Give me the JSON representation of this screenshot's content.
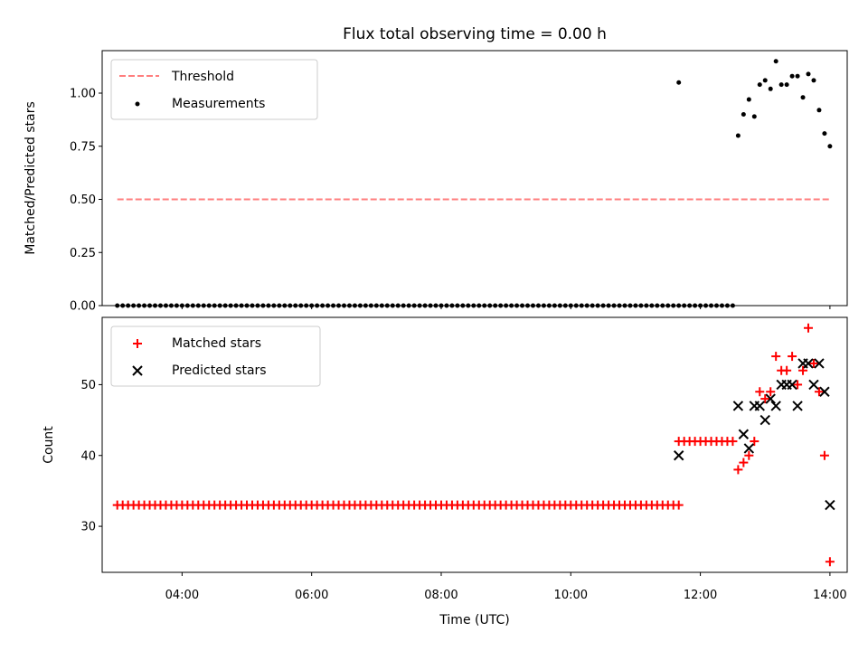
{
  "chart_data": [
    {
      "type": "scatter",
      "title": "Flux total observing time = 0.00 h",
      "ylabel": "Matched/Predicted stars",
      "xlabel": "",
      "xlim": [
        "02:46",
        "14:16"
      ],
      "ylim": [
        0.0,
        1.2
      ],
      "yticks": [
        0.0,
        0.25,
        0.5,
        0.75,
        1.0
      ],
      "ytick_labels": [
        "0.00",
        "0.25",
        "0.50",
        "0.75",
        "1.00"
      ],
      "legend": [
        "Threshold",
        "Measurements"
      ],
      "legend_position": "upper-left",
      "threshold": {
        "name": "Threshold",
        "value": 0.5,
        "x_start": "03:00",
        "x_end": "14:00",
        "color": "#ff7f7f",
        "style": "dashed"
      },
      "measurements": {
        "name": "Measurements",
        "color": "#000000",
        "zero_range": {
          "start": "03:00",
          "end": "12:30",
          "step_minutes": 5,
          "value": 0.0
        },
        "points": [
          {
            "x": "11:40",
            "y": 1.05
          },
          {
            "x": "12:35",
            "y": 0.8
          },
          {
            "x": "12:40",
            "y": 0.9
          },
          {
            "x": "12:45",
            "y": 0.97
          },
          {
            "x": "12:50",
            "y": 0.89
          },
          {
            "x": "12:55",
            "y": 1.04
          },
          {
            "x": "13:00",
            "y": 1.06
          },
          {
            "x": "13:05",
            "y": 1.02
          },
          {
            "x": "13:10",
            "y": 1.15
          },
          {
            "x": "13:15",
            "y": 1.04
          },
          {
            "x": "13:20",
            "y": 1.04
          },
          {
            "x": "13:25",
            "y": 1.08
          },
          {
            "x": "13:30",
            "y": 1.08
          },
          {
            "x": "13:35",
            "y": 0.98
          },
          {
            "x": "13:40",
            "y": 1.09
          },
          {
            "x": "13:45",
            "y": 1.06
          },
          {
            "x": "13:50",
            "y": 0.92
          },
          {
            "x": "13:55",
            "y": 0.81
          },
          {
            "x": "14:00",
            "y": 0.75
          }
        ]
      }
    },
    {
      "type": "scatter",
      "title": "",
      "xlabel": "Time (UTC)",
      "ylabel": "Count",
      "xlim": [
        "02:46",
        "14:16"
      ],
      "ylim": [
        23.5,
        59.5
      ],
      "yticks": [
        30,
        40,
        50
      ],
      "xticks": [
        "04:00",
        "06:00",
        "08:00",
        "10:00",
        "12:00",
        "14:00"
      ],
      "legend": [
        "Matched stars",
        "Predicted stars"
      ],
      "legend_position": "upper-left",
      "matched": {
        "name": "Matched stars",
        "color": "#ff0000",
        "marker": "plus",
        "flat_ranges": [
          {
            "start": "03:00",
            "end": "11:40",
            "step_minutes": 5,
            "value": 33
          },
          {
            "start": "11:40",
            "end": "12:30",
            "step_minutes": 5,
            "value": 42
          }
        ],
        "points": [
          {
            "x": "12:35",
            "y": 38
          },
          {
            "x": "12:40",
            "y": 39
          },
          {
            "x": "12:45",
            "y": 40
          },
          {
            "x": "12:50",
            "y": 42
          },
          {
            "x": "12:55",
            "y": 49
          },
          {
            "x": "13:00",
            "y": 48
          },
          {
            "x": "13:05",
            "y": 49
          },
          {
            "x": "13:10",
            "y": 54
          },
          {
            "x": "13:15",
            "y": 52
          },
          {
            "x": "13:20",
            "y": 52
          },
          {
            "x": "13:25",
            "y": 54
          },
          {
            "x": "13:30",
            "y": 50
          },
          {
            "x": "13:35",
            "y": 52
          },
          {
            "x": "13:40",
            "y": 58
          },
          {
            "x": "13:45",
            "y": 53
          },
          {
            "x": "13:50",
            "y": 49
          },
          {
            "x": "13:55",
            "y": 40
          },
          {
            "x": "14:00",
            "y": 25
          }
        ]
      },
      "predicted": {
        "name": "Predicted stars",
        "color": "#000000",
        "marker": "x",
        "points": [
          {
            "x": "11:40",
            "y": 40
          },
          {
            "x": "12:35",
            "y": 47
          },
          {
            "x": "12:40",
            "y": 43
          },
          {
            "x": "12:45",
            "y": 41
          },
          {
            "x": "12:50",
            "y": 47
          },
          {
            "x": "12:55",
            "y": 47
          },
          {
            "x": "13:00",
            "y": 45
          },
          {
            "x": "13:05",
            "y": 48
          },
          {
            "x": "13:10",
            "y": 47
          },
          {
            "x": "13:15",
            "y": 50
          },
          {
            "x": "13:20",
            "y": 50
          },
          {
            "x": "13:25",
            "y": 50
          },
          {
            "x": "13:30",
            "y": 47
          },
          {
            "x": "13:35",
            "y": 53
          },
          {
            "x": "13:40",
            "y": 53
          },
          {
            "x": "13:45",
            "y": 50
          },
          {
            "x": "13:50",
            "y": 53
          },
          {
            "x": "13:55",
            "y": 49
          },
          {
            "x": "14:00",
            "y": 33
          }
        ]
      }
    }
  ]
}
